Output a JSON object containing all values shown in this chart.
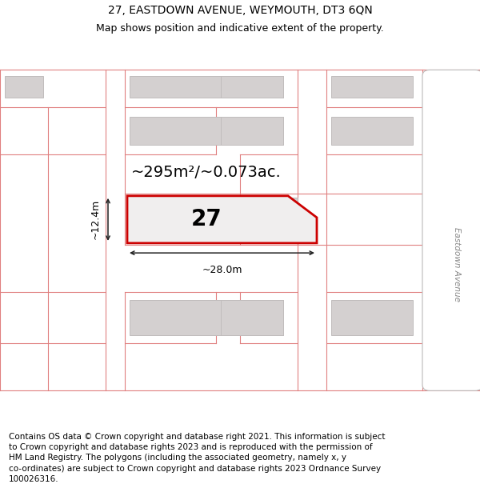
{
  "title": "27, EASTDOWN AVENUE, WEYMOUTH, DT3 6QN",
  "subtitle": "Map shows position and indicative extent of the property.",
  "footer": "Contains OS data © Crown copyright and database right 2021. This information is subject\nto Crown copyright and database rights 2023 and is reproduced with the permission of\nHM Land Registry. The polygons (including the associated geometry, namely x, y\nco-ordinates) are subject to Crown copyright and database rights 2023 Ordnance Survey\n100026316.",
  "map_bg": "#ece9e9",
  "building_color": "#d4d0d0",
  "building_edge": "#c0bcbc",
  "plot_line_color": "#cc0000",
  "dim_line_color": "#222222",
  "cadastral_color": "#e08080",
  "area_text": "~295m²/~0.073ac.",
  "dim_width": "~28.0m",
  "dim_height": "~12.4m",
  "plot_label": "27",
  "street_label": "Eastdown Avenue",
  "title_fontsize": 10,
  "subtitle_fontsize": 9,
  "footer_fontsize": 7.5,
  "area_fontsize": 14,
  "label_fontsize": 20,
  "dim_fontsize": 9
}
